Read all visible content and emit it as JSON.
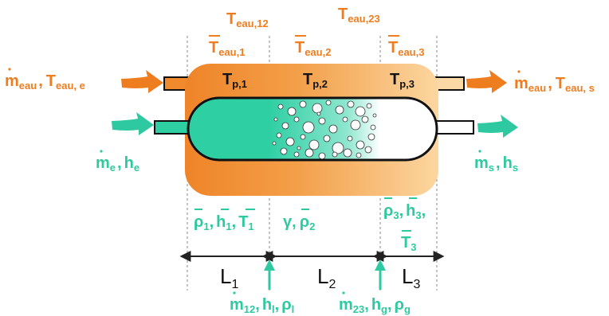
{
  "colors": {
    "orange_text": "#ee7d20",
    "green_text": "#2ec9a0",
    "jacket_dark": "#f08a2c",
    "jacket_light": "#fbd39a",
    "liquid": "#2fcfa4",
    "outline": "#111111"
  },
  "zone_boundary_labels": {
    "t12": {
      "main": "T",
      "sub": "eau,12"
    },
    "t23": {
      "main": "T",
      "sub": "eau,23"
    }
  },
  "zone_mean_water_temps": [
    {
      "main": "T",
      "sub": "eau,1"
    },
    {
      "main": "T",
      "sub": "eau,2"
    },
    {
      "main": "T",
      "sub": "eau,3"
    }
  ],
  "wall_temps": [
    {
      "main": "T",
      "sub": "p,1"
    },
    {
      "main": "T",
      "sub": "p,2"
    },
    {
      "main": "T",
      "sub": "p,3"
    }
  ],
  "water_inlet": {
    "m": "m",
    "m_sub": "eau",
    "sep": ",",
    "t": "T",
    "t_sub": "eau, e"
  },
  "water_outlet": {
    "m": "m",
    "m_sub": "eau",
    "sep": ",",
    "t": "T",
    "t_sub": "eau, s"
  },
  "fluid_inlet": {
    "m": "m",
    "m_sub": "e",
    "sep": ",",
    "h": "h",
    "h_sub": "e"
  },
  "fluid_outlet": {
    "m": "m",
    "m_sub": "s",
    "sep": ",",
    "h": "h",
    "h_sub": "s"
  },
  "zone_props": {
    "z1": {
      "rho": "ρ",
      "rho_sub": "1",
      "h": "h",
      "h_sub": "1",
      "t": "T",
      "t_sub": "1",
      "sep": ","
    },
    "z2": {
      "gamma": "γ",
      "rho": "ρ",
      "rho_sub": "2",
      "sep": ","
    },
    "z3_line1": {
      "rho": "ρ",
      "rho_sub": "3",
      "h": "h",
      "h_sub": "3",
      "sep": ","
    },
    "z3_line2": {
      "t": "T",
      "t_sub": "3"
    }
  },
  "lengths": [
    {
      "main": "L",
      "sub": "1"
    },
    {
      "main": "L",
      "sub": "2"
    },
    {
      "main": "L",
      "sub": "3"
    }
  ],
  "interface_flows": {
    "f12": {
      "m": "m",
      "m_sub": "12",
      "h": "h",
      "h_sub": "l",
      "rho": "ρ",
      "rho_sub": "l",
      "sep": ","
    },
    "f23": {
      "m": "m",
      "m_sub": "23",
      "h": "h",
      "h_sub": "g",
      "rho": "ρ",
      "rho_sub": "g",
      "sep": ","
    }
  }
}
